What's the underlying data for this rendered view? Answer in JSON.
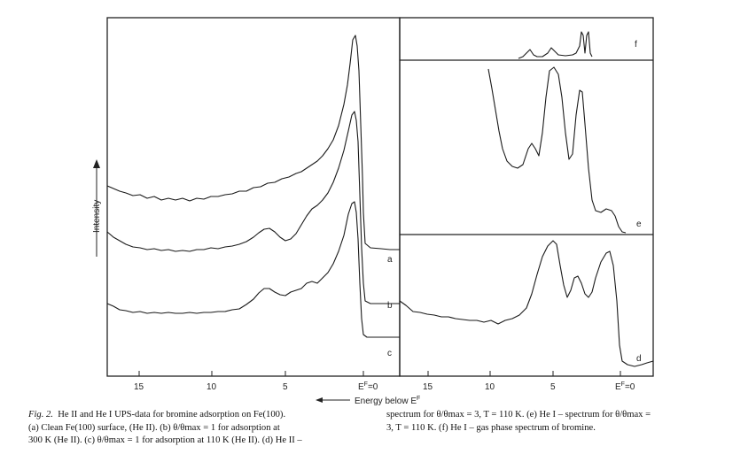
{
  "figure": {
    "ylabel": "Intensity",
    "xlabel": "Energy below E",
    "xlabel_sup": "F",
    "left_ticks": [
      "15",
      "10",
      "5",
      "E",
      "=0"
    ],
    "right_ticks": [
      "15",
      "10",
      "5",
      "E",
      "=0"
    ],
    "tick_sup": "F",
    "curve_labels": {
      "a": "a",
      "b": "b",
      "c": "c",
      "d": "d",
      "e": "e",
      "f": "f"
    }
  },
  "chart_data": [
    {
      "type": "line",
      "panel": "left",
      "x_axis": "Energy below E^F (eV)",
      "xlim": [
        17,
        0
      ],
      "series": [
        {
          "label": "a",
          "points": [
            [
              17,
              0.22
            ],
            [
              15,
              0.25
            ],
            [
              12,
              0.28
            ],
            [
              10,
              0.31
            ],
            [
              8,
              0.36
            ],
            [
              6,
              0.42
            ],
            [
              4,
              0.5
            ],
            [
              2,
              0.62
            ],
            [
              1.2,
              0.78
            ],
            [
              0.8,
              0.95
            ],
            [
              0.5,
              0.82
            ],
            [
              0.2,
              0.3
            ],
            [
              0,
              0.28
            ]
          ]
        },
        {
          "label": "b",
          "points": [
            [
              17,
              0.2
            ],
            [
              15,
              0.22
            ],
            [
              12,
              0.24
            ],
            [
              10,
              0.26
            ],
            [
              8,
              0.3
            ],
            [
              6,
              0.42
            ],
            [
              5,
              0.36
            ],
            [
              4,
              0.34
            ],
            [
              2,
              0.5
            ],
            [
              1,
              0.75
            ],
            [
              0.6,
              0.88
            ],
            [
              0.3,
              0.45
            ],
            [
              0,
              0.42
            ]
          ]
        },
        {
          "label": "c",
          "points": [
            [
              17,
              0.12
            ],
            [
              15,
              0.1
            ],
            [
              12,
              0.1
            ],
            [
              10,
              0.11
            ],
            [
              8,
              0.14
            ],
            [
              6,
              0.28
            ],
            [
              4,
              0.24
            ],
            [
              3,
              0.28
            ],
            [
              1.5,
              0.5
            ],
            [
              0.8,
              0.72
            ],
            [
              0.4,
              0.45
            ],
            [
              0,
              0.38
            ]
          ]
        }
      ]
    },
    {
      "type": "line",
      "panel": "right",
      "x_axis": "Energy below E^F (eV)",
      "xlim": [
        17,
        -1
      ],
      "series": [
        {
          "label": "d",
          "points": [
            [
              17,
              0.5
            ],
            [
              15,
              0.44
            ],
            [
              12,
              0.42
            ],
            [
              10,
              0.4
            ],
            [
              8,
              0.4
            ],
            [
              6,
              0.5
            ],
            [
              5,
              0.95
            ],
            [
              4.2,
              0.6
            ],
            [
              3,
              0.68
            ],
            [
              2.5,
              0.5
            ],
            [
              1.6,
              0.82
            ],
            [
              1,
              0.2
            ],
            [
              0,
              0.05
            ],
            [
              -1,
              0.08
            ]
          ]
        },
        {
          "label": "e",
          "points": [
            [
              8,
              0.95
            ],
            [
              7.5,
              0.45
            ],
            [
              7,
              0.4
            ],
            [
              6.5,
              0.55
            ],
            [
              6,
              0.45
            ],
            [
              5,
              0.97
            ],
            [
              4.2,
              0.6
            ],
            [
              3.5,
              0.3
            ],
            [
              2.8,
              0.85
            ],
            [
              2,
              0.3
            ],
            [
              1.5,
              0.2
            ],
            [
              1,
              0.15
            ],
            [
              0.5,
              0.02
            ]
          ]
        },
        {
          "label": "f",
          "points": [
            [
              8,
              0.05
            ],
            [
              7,
              0.35
            ],
            [
              6,
              0.1
            ],
            [
              5,
              0.45
            ],
            [
              4,
              0.12
            ],
            [
              3.3,
              0.9
            ],
            [
              3.1,
              0.2
            ],
            [
              2.8,
              0.9
            ],
            [
              2.6,
              0.05
            ]
          ]
        }
      ]
    }
  ],
  "caption": {
    "figno": "Fig. 2.",
    "col1_lines": [
      "He II and He I UPS-data for bromine adsorption on Fe(100).",
      "(a) Clean Fe(100) surface, (He II). (b) θ/θmax = 1 for adsorption at",
      "300 K (He II). (c) θ/θmax = 1 for adsorption at 110 K (He II). (d) He II –"
    ],
    "col2_lines": [
      "spectrum for θ/θmax = 3, T = 110 K. (e) He I – spectrum for θ/θmax =",
      "3, T = 110 K. (f) He I – gas phase spectrum of bromine."
    ]
  }
}
